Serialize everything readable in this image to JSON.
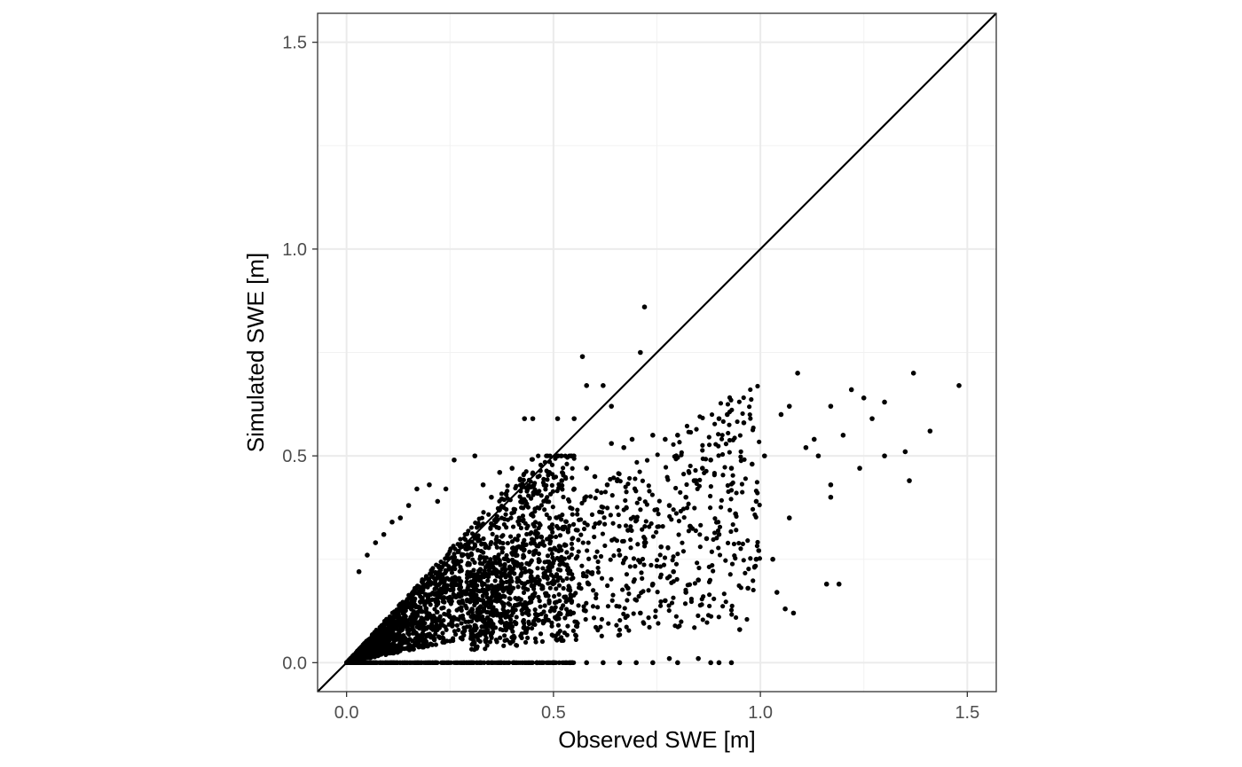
{
  "chart_data": {
    "type": "scatter",
    "title": "",
    "xlabel": "Observed SWE [m]",
    "ylabel": "Simulated SWE [m]",
    "xlim": [
      -0.07,
      1.57
    ],
    "ylim": [
      -0.07,
      1.57
    ],
    "x_ticks": [
      0.0,
      0.5,
      1.0,
      1.5
    ],
    "y_ticks": [
      0.0,
      0.5,
      1.0,
      1.5
    ],
    "x_tick_labels": [
      "0.0",
      "0.5",
      "1.0",
      "1.5"
    ],
    "y_tick_labels": [
      "0.0",
      "0.5",
      "1.0",
      "1.5"
    ],
    "grid": true,
    "reference_line": {
      "slope": 1,
      "intercept": 0
    },
    "point_color": "#000000",
    "series": [
      {
        "points": [
          [
            0.72,
            0.86
          ],
          [
            0.57,
            0.74
          ],
          [
            0.71,
            0.75
          ],
          [
            0.58,
            0.67
          ],
          [
            0.62,
            0.67
          ],
          [
            0.64,
            0.62
          ],
          [
            1.48,
            0.67
          ],
          [
            1.37,
            0.7
          ],
          [
            1.09,
            0.7
          ],
          [
            1.22,
            0.66
          ],
          [
            1.25,
            0.64
          ],
          [
            1.3,
            0.63
          ],
          [
            1.27,
            0.59
          ],
          [
            1.41,
            0.56
          ],
          [
            1.17,
            0.62
          ],
          [
            1.07,
            0.62
          ],
          [
            1.05,
            0.6
          ],
          [
            0.92,
            0.6
          ],
          [
            0.9,
            0.59
          ],
          [
            0.96,
            0.58
          ],
          [
            0.55,
            0.59
          ],
          [
            0.51,
            0.59
          ],
          [
            0.45,
            0.59
          ],
          [
            0.43,
            0.59
          ],
          [
            1.35,
            0.51
          ],
          [
            1.36,
            0.44
          ],
          [
            1.3,
            0.5
          ],
          [
            1.24,
            0.47
          ],
          [
            1.17,
            0.43
          ],
          [
            1.17,
            0.4
          ],
          [
            1.16,
            0.19
          ],
          [
            1.19,
            0.19
          ],
          [
            1.06,
            0.13
          ],
          [
            1.08,
            0.12
          ],
          [
            1.04,
            0.17
          ],
          [
            1.03,
            0.25
          ],
          [
            1.07,
            0.35
          ],
          [
            0.99,
            0.25
          ],
          [
            0.97,
            0.18
          ],
          [
            0.95,
            0.08
          ],
          [
            0.93,
            0.0
          ],
          [
            0.9,
            0.0
          ],
          [
            0.88,
            0.0
          ],
          [
            0.85,
            0.01
          ],
          [
            0.8,
            0.0
          ],
          [
            0.78,
            0.01
          ],
          [
            0.74,
            0.0
          ],
          [
            0.7,
            0.0
          ],
          [
            0.66,
            0.0
          ],
          [
            0.62,
            0.0
          ],
          [
            0.58,
            0.0
          ],
          [
            0.54,
            0.0
          ],
          [
            0.5,
            0.0
          ],
          [
            0.46,
            0.0
          ],
          [
            0.8,
            0.55
          ],
          [
            0.77,
            0.54
          ],
          [
            0.74,
            0.55
          ],
          [
            0.69,
            0.54
          ],
          [
            0.67,
            0.52
          ],
          [
            0.64,
            0.53
          ],
          [
            0.86,
            0.47
          ],
          [
            0.84,
            0.44
          ],
          [
            0.88,
            0.49
          ],
          [
            0.93,
            0.47
          ],
          [
            0.98,
            0.48
          ],
          [
            1.01,
            0.5
          ],
          [
            1.11,
            0.52
          ],
          [
            1.13,
            0.54
          ],
          [
            1.2,
            0.55
          ],
          [
            1.14,
            0.5
          ],
          [
            0.82,
            0.4
          ],
          [
            0.78,
            0.38
          ],
          [
            0.75,
            0.37
          ],
          [
            0.7,
            0.35
          ],
          [
            0.68,
            0.32
          ],
          [
            0.83,
            0.33
          ],
          [
            0.87,
            0.3
          ],
          [
            0.9,
            0.31
          ],
          [
            0.94,
            0.36
          ],
          [
            0.99,
            0.39
          ],
          [
            0.76,
            0.28
          ],
          [
            0.72,
            0.29
          ],
          [
            0.79,
            0.22
          ],
          [
            0.82,
            0.17
          ],
          [
            0.85,
            0.2
          ],
          [
            0.77,
            0.15
          ],
          [
            0.74,
            0.19
          ],
          [
            0.71,
            0.12
          ],
          [
            0.68,
            0.18
          ],
          [
            0.66,
            0.26
          ],
          [
            0.63,
            0.43
          ],
          [
            0.6,
            0.45
          ],
          [
            0.58,
            0.47
          ],
          [
            0.55,
            0.42
          ],
          [
            0.52,
            0.44
          ],
          [
            0.49,
            0.46
          ],
          [
            0.46,
            0.41
          ],
          [
            0.4,
            0.47
          ],
          [
            0.37,
            0.46
          ],
          [
            0.35,
            0.4
          ],
          [
            0.33,
            0.43
          ],
          [
            0.31,
            0.5
          ],
          [
            0.26,
            0.49
          ],
          [
            0.24,
            0.42
          ],
          [
            0.22,
            0.39
          ],
          [
            0.2,
            0.43
          ],
          [
            0.17,
            0.42
          ],
          [
            0.15,
            0.38
          ],
          [
            0.13,
            0.35
          ],
          [
            0.11,
            0.34
          ],
          [
            0.09,
            0.31
          ],
          [
            0.07,
            0.29
          ],
          [
            0.05,
            0.26
          ],
          [
            0.03,
            0.22
          ]
        ]
      }
    ]
  }
}
